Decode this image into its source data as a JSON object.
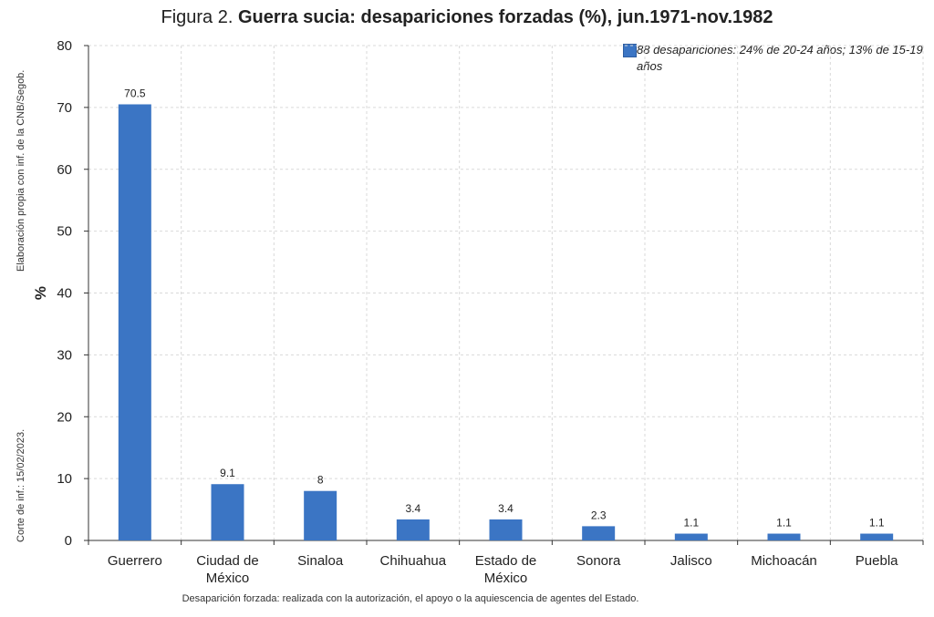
{
  "title": {
    "prefix": "Figura 2.",
    "main": "Guerra sucia: desapariciones forzadas (%), jun.1971-nov.1982"
  },
  "side_notes": {
    "source": "Elaboración propia con inf. de la CNB/Segob.",
    "cutoff": "Corte de inf.: 15/02/2023."
  },
  "footnote": "Desaparición forzada: realizada con la autorización, el apoyo o la aquiescencia de agentes del Estado.",
  "colors": {
    "bar": "#3b75c4",
    "grid": "#d9d9d9",
    "axis": "#333333"
  },
  "chart_data": {
    "type": "bar",
    "title": "Guerra sucia: desapariciones forzadas (%), jun.1971-nov.1982",
    "xlabel": "",
    "ylabel": "%",
    "ylim": [
      0,
      80
    ],
    "yticks": [
      0,
      10,
      20,
      30,
      40,
      50,
      60,
      70,
      80
    ],
    "grid": true,
    "legend_position": "top-right",
    "categories": [
      [
        "Guerrero"
      ],
      [
        "Ciudad de",
        "México"
      ],
      [
        "Sinaloa"
      ],
      [
        "Chihuahua"
      ],
      [
        "Estado de",
        "México"
      ],
      [
        "Sonora"
      ],
      [
        "Jalisco"
      ],
      [
        "Michoacán"
      ],
      [
        "Puebla"
      ]
    ],
    "series": [
      {
        "name": "88 desapariciones: 24% de 20-24 años; 13% de 15-19 años",
        "values": [
          70.5,
          9.1,
          8,
          3.4,
          3.4,
          2.3,
          1.1,
          1.1,
          1.1
        ],
        "labels": [
          "70.5",
          "9.1",
          "8",
          "3.4",
          "3.4",
          "2.3",
          "1.1",
          "1.1",
          "1.1"
        ]
      }
    ]
  }
}
